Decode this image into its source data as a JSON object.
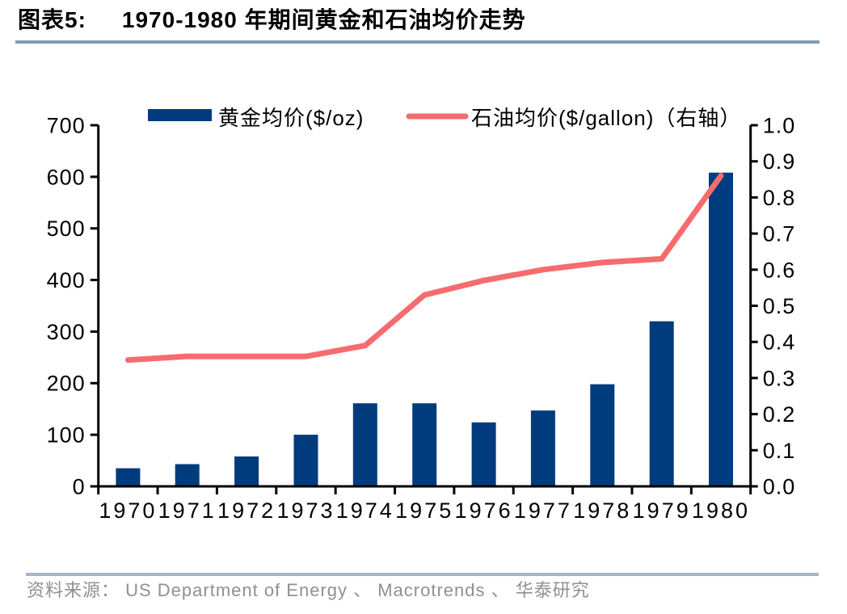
{
  "title": {
    "label": "图表5:",
    "text": "1970-1980 年期间黄金和石油均价走势"
  },
  "footer": {
    "source": "资料来源： US Department of Energy 、 Macrotrends 、 华泰研究"
  },
  "colors": {
    "bar": "#003c7d",
    "line": "#f66c6e",
    "axis": "#000000",
    "title_rule": "#7d9cb8",
    "footer_rule": "#a4b4ca",
    "source_text": "#909090"
  },
  "chart_data": {
    "type": "bar",
    "subtype": "bar+line combo, dual axis",
    "title": "1970-1980 年期间黄金和石油均价走势",
    "categories": [
      "1970",
      "1971",
      "1972",
      "1973",
      "1974",
      "1975",
      "1976",
      "1977",
      "1978",
      "1979",
      "1980"
    ],
    "series": [
      {
        "name": "黄金均价($/oz)",
        "type": "bar",
        "axis": "left",
        "values": [
          35,
          43,
          58,
          100,
          161,
          161,
          124,
          147,
          198,
          320,
          608
        ]
      },
      {
        "name": "石油均价($/gallon)（右轴）",
        "type": "line",
        "axis": "right",
        "values": [
          0.35,
          0.36,
          0.36,
          0.36,
          0.39,
          0.53,
          0.57,
          0.6,
          0.62,
          0.63,
          0.86
        ]
      }
    ],
    "left_axis": {
      "min": 0,
      "max": 700,
      "step": 100,
      "tick_labels": [
        "0",
        "100",
        "200",
        "300",
        "400",
        "500",
        "600",
        "700"
      ]
    },
    "right_axis": {
      "min": 0,
      "max": 1.0,
      "step": 0.1,
      "tick_labels": [
        "0.0",
        "0.1",
        "0.2",
        "0.3",
        "0.4",
        "0.5",
        "0.6",
        "0.7",
        "0.8",
        "0.9",
        "1.0"
      ]
    },
    "legend_position": "top",
    "grid": "off"
  }
}
